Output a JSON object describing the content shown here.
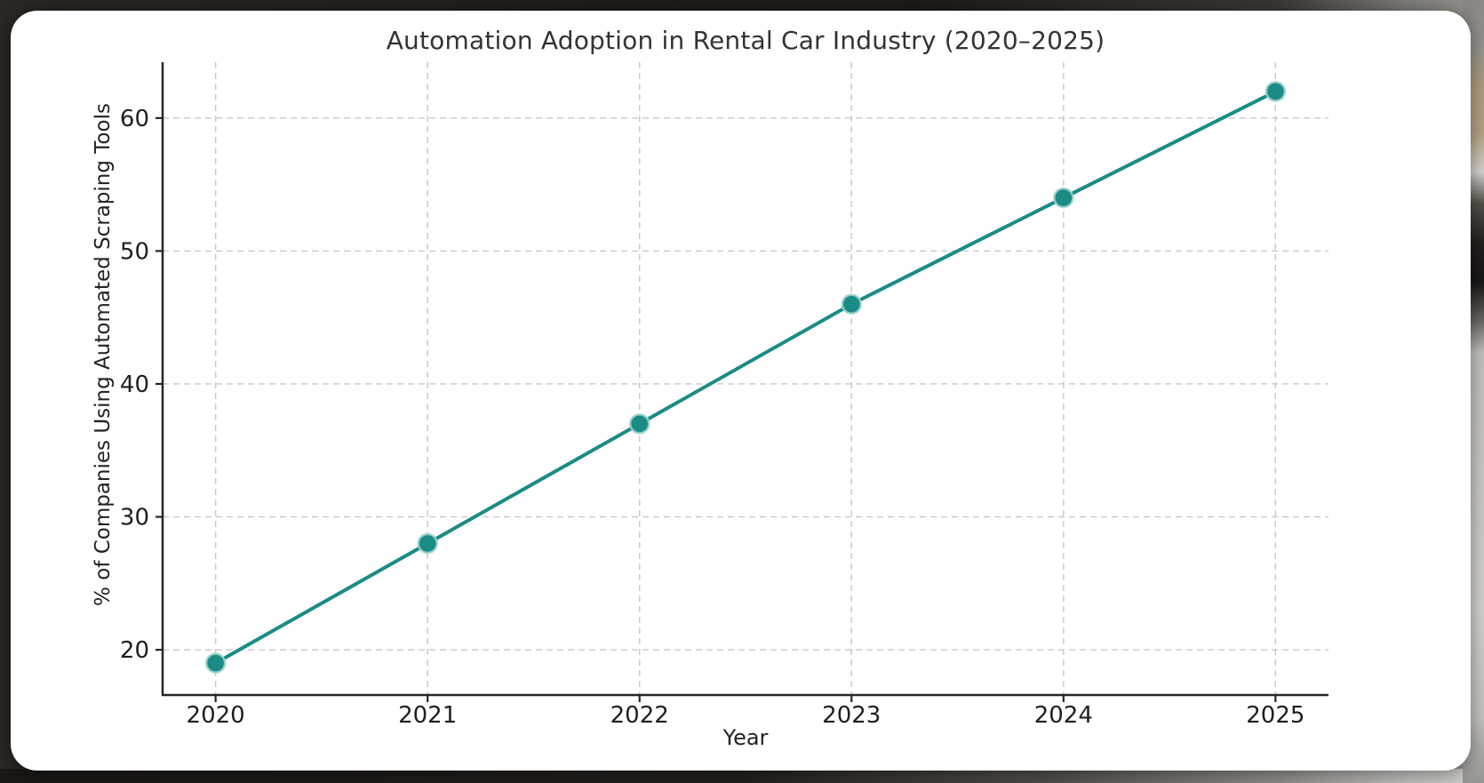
{
  "chart_data": {
    "type": "line",
    "title": "Automation Adoption in Rental Car Industry (2020–2025)",
    "xlabel": "Year",
    "ylabel": "% of Companies Using Automated Scraping Tools",
    "x": [
      2020,
      2021,
      2022,
      2023,
      2024,
      2025
    ],
    "values": [
      19,
      28,
      37,
      46,
      54,
      62
    ],
    "xticks": [
      2020,
      2021,
      2022,
      2023,
      2024,
      2025
    ],
    "yticks": [
      20,
      30,
      40,
      50,
      60
    ],
    "xlim": [
      2019.75,
      2025.25
    ],
    "ylim": [
      16.6,
      64.2
    ],
    "grid": true,
    "grid_style": "dashed",
    "legend": "none",
    "line_color": "#1b8b85",
    "marker_edge_color": "#9ed3ce",
    "grid_color": "#c9c9c9",
    "spine_color": "#262626",
    "text_color": "#1f1f1f"
  }
}
